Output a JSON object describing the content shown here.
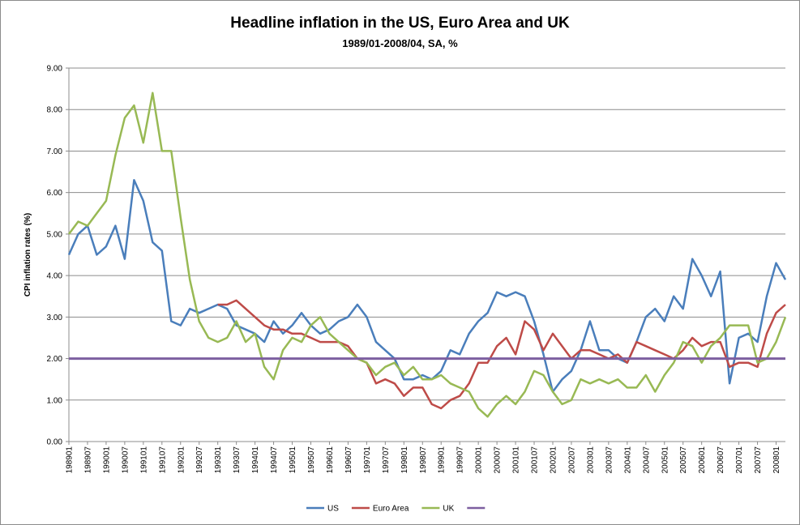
{
  "chart_data": {
    "type": "line",
    "title": "Headline inflation in the US, Euro Area and UK",
    "subtitle": "1989/01-2008/04, SA, %",
    "ylabel": "CPI inflation rates (%)",
    "xlabel": "",
    "ylim": [
      0,
      9
    ],
    "yticks": [
      "0.00",
      "1.00",
      "2.00",
      "3.00",
      "4.00",
      "5.00",
      "6.00",
      "7.00",
      "8.00",
      "9.00"
    ],
    "grid": "horizontal",
    "legend_position": "bottom",
    "x_tick_labels": [
      "198901",
      "198907",
      "199001",
      "199007",
      "199101",
      "199107",
      "199201",
      "199207",
      "199301",
      "199307",
      "199401",
      "199407",
      "199501",
      "199507",
      "199601",
      "199607",
      "199701",
      "199707",
      "199801",
      "199807",
      "199901",
      "199907",
      "200001",
      "200007",
      "200101",
      "200107",
      "200201",
      "200207",
      "200301",
      "200307",
      "200401",
      "200407",
      "200501",
      "200507",
      "200601",
      "200607",
      "200701",
      "200707",
      "200801"
    ],
    "x_start": "1989-01",
    "x_end": "2008-04",
    "series": [
      {
        "name": "US",
        "color": "#4a7ebb",
        "x": [
          "1989-01",
          "1989-04",
          "1989-07",
          "1989-10",
          "1990-01",
          "1990-04",
          "1990-07",
          "1990-10",
          "1991-01",
          "1991-04",
          "1991-07",
          "1991-10",
          "1992-01",
          "1992-04",
          "1992-07",
          "1992-10",
          "1993-01",
          "1993-04",
          "1993-07",
          "1993-10",
          "1994-01",
          "1994-04",
          "1994-07",
          "1994-10",
          "1995-01",
          "1995-04",
          "1995-07",
          "1995-10",
          "1996-01",
          "1996-04",
          "1996-07",
          "1996-10",
          "1997-01",
          "1997-04",
          "1997-07",
          "1997-10",
          "1998-01",
          "1998-04",
          "1998-07",
          "1998-10",
          "1999-01",
          "1999-04",
          "1999-07",
          "1999-10",
          "2000-01",
          "2000-04",
          "2000-07",
          "2000-10",
          "2001-01",
          "2001-04",
          "2001-07",
          "2001-10",
          "2002-01",
          "2002-04",
          "2002-07",
          "2002-10",
          "2003-01",
          "2003-04",
          "2003-07",
          "2003-10",
          "2004-01",
          "2004-04",
          "2004-07",
          "2004-10",
          "2005-01",
          "2005-04",
          "2005-07",
          "2005-10",
          "2006-01",
          "2006-04",
          "2006-07",
          "2006-10",
          "2007-01",
          "2007-04",
          "2007-07",
          "2007-10",
          "2008-01",
          "2008-04"
        ],
        "values": [
          4.5,
          5.0,
          5.2,
          4.5,
          4.7,
          5.2,
          4.4,
          6.3,
          5.8,
          4.8,
          4.6,
          2.9,
          2.8,
          3.2,
          3.1,
          3.2,
          3.3,
          3.2,
          2.8,
          2.7,
          2.6,
          2.4,
          2.9,
          2.6,
          2.8,
          3.1,
          2.8,
          2.6,
          2.7,
          2.9,
          3.0,
          3.3,
          3.0,
          2.4,
          2.2,
          2.0,
          1.5,
          1.5,
          1.6,
          1.5,
          1.7,
          2.2,
          2.1,
          2.6,
          2.9,
          3.1,
          3.6,
          3.5,
          3.6,
          3.5,
          2.9,
          2.1,
          1.2,
          1.5,
          1.7,
          2.2,
          2.9,
          2.2,
          2.2,
          2.0,
          1.9,
          2.4,
          3.0,
          3.2,
          2.9,
          3.5,
          3.2,
          4.4,
          4.0,
          3.5,
          4.1,
          1.4,
          2.5,
          2.6,
          2.4,
          3.5,
          4.3,
          3.9
        ]
      },
      {
        "name": "Euro Area",
        "color": "#be4b48",
        "x": [
          "1993-01",
          "1993-04",
          "1993-07",
          "1993-10",
          "1994-01",
          "1994-04",
          "1994-07",
          "1994-10",
          "1995-01",
          "1995-04",
          "1995-07",
          "1995-10",
          "1996-01",
          "1996-04",
          "1996-07",
          "1996-10",
          "1997-01",
          "1997-04",
          "1997-07",
          "1997-10",
          "1998-01",
          "1998-04",
          "1998-07",
          "1998-10",
          "1999-01",
          "1999-04",
          "1999-07",
          "1999-10",
          "2000-01",
          "2000-04",
          "2000-07",
          "2000-10",
          "2001-01",
          "2001-04",
          "2001-07",
          "2001-10",
          "2002-01",
          "2002-04",
          "2002-07",
          "2002-10",
          "2003-01",
          "2003-04",
          "2003-07",
          "2003-10",
          "2004-01",
          "2004-04",
          "2004-07",
          "2004-10",
          "2005-01",
          "2005-04",
          "2005-07",
          "2005-10",
          "2006-01",
          "2006-04",
          "2006-07",
          "2006-10",
          "2007-01",
          "2007-04",
          "2007-07",
          "2007-10",
          "2008-01",
          "2008-04"
        ],
        "values": [
          3.3,
          3.3,
          3.4,
          3.2,
          3.0,
          2.8,
          2.7,
          2.7,
          2.6,
          2.6,
          2.5,
          2.4,
          2.4,
          2.4,
          2.3,
          2.0,
          1.9,
          1.4,
          1.5,
          1.4,
          1.1,
          1.3,
          1.3,
          0.9,
          0.8,
          1.0,
          1.1,
          1.4,
          1.9,
          1.9,
          2.3,
          2.5,
          2.1,
          2.9,
          2.7,
          2.2,
          2.6,
          2.3,
          2.0,
          2.2,
          2.2,
          2.1,
          2.0,
          2.1,
          1.9,
          2.4,
          2.3,
          2.2,
          2.1,
          2.0,
          2.2,
          2.5,
          2.3,
          2.4,
          2.4,
          1.8,
          1.9,
          1.9,
          1.8,
          2.6,
          3.1,
          3.3
        ]
      },
      {
        "name": "UK",
        "color": "#98b954",
        "x": [
          "1989-01",
          "1989-04",
          "1989-07",
          "1989-10",
          "1990-01",
          "1990-04",
          "1990-07",
          "1990-10",
          "1991-01",
          "1991-04",
          "1991-07",
          "1991-10",
          "1992-01",
          "1992-04",
          "1992-07",
          "1992-10",
          "1993-01",
          "1993-04",
          "1993-07",
          "1993-10",
          "1994-01",
          "1994-04",
          "1994-07",
          "1994-10",
          "1995-01",
          "1995-04",
          "1995-07",
          "1995-10",
          "1996-01",
          "1996-04",
          "1996-07",
          "1996-10",
          "1997-01",
          "1997-04",
          "1997-07",
          "1997-10",
          "1998-01",
          "1998-04",
          "1998-07",
          "1998-10",
          "1999-01",
          "1999-04",
          "1999-07",
          "1999-10",
          "2000-01",
          "2000-04",
          "2000-07",
          "2000-10",
          "2001-01",
          "2001-04",
          "2001-07",
          "2001-10",
          "2002-01",
          "2002-04",
          "2002-07",
          "2002-10",
          "2003-01",
          "2003-04",
          "2003-07",
          "2003-10",
          "2004-01",
          "2004-04",
          "2004-07",
          "2004-10",
          "2005-01",
          "2005-04",
          "2005-07",
          "2005-10",
          "2006-01",
          "2006-04",
          "2006-07",
          "2006-10",
          "2007-01",
          "2007-04",
          "2007-07",
          "2007-10",
          "2008-01",
          "2008-04"
        ],
        "values": [
          5.0,
          5.3,
          5.2,
          5.5,
          5.8,
          6.9,
          7.8,
          8.1,
          7.2,
          8.4,
          7.0,
          7.0,
          5.4,
          3.9,
          2.9,
          2.5,
          2.4,
          2.5,
          2.9,
          2.4,
          2.6,
          1.8,
          1.5,
          2.2,
          2.5,
          2.4,
          2.8,
          3.0,
          2.6,
          2.4,
          2.2,
          2.0,
          1.9,
          1.6,
          1.8,
          1.9,
          1.6,
          1.8,
          1.5,
          1.5,
          1.6,
          1.4,
          1.3,
          1.2,
          0.8,
          0.6,
          0.9,
          1.1,
          0.9,
          1.2,
          1.7,
          1.6,
          1.2,
          0.9,
          1.0,
          1.5,
          1.4,
          1.5,
          1.4,
          1.5,
          1.3,
          1.3,
          1.6,
          1.2,
          1.6,
          1.9,
          2.4,
          2.3,
          1.9,
          2.3,
          2.5,
          2.8,
          2.8,
          2.8,
          1.9,
          2.0,
          2.4,
          3.0
        ]
      },
      {
        "name": "",
        "color": "#7d5fa0",
        "x": [
          "1989-01",
          "2008-04"
        ],
        "values": [
          2.0,
          2.0
        ]
      }
    ]
  }
}
